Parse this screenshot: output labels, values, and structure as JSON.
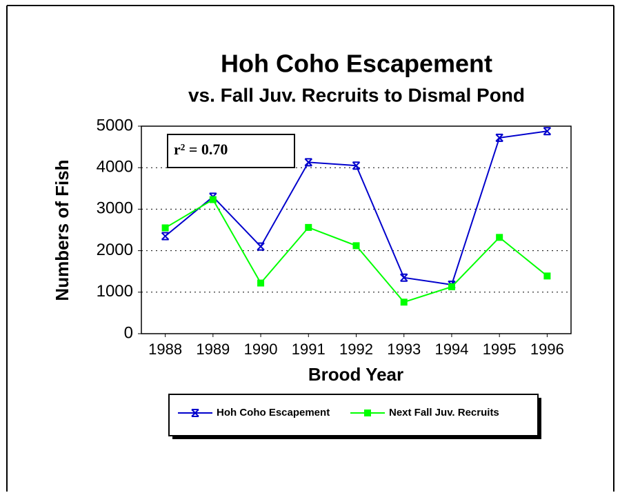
{
  "chart_data": {
    "type": "line",
    "title": "Hoh Coho Escapement",
    "subtitle": "vs. Fall Juv. Recruits to Dismal Pond",
    "x_label": "Brood Year",
    "y_label": "Numbers of Fish",
    "annotation": "r² = 0.70",
    "categories": [
      "1988",
      "1989",
      "1990",
      "1991",
      "1992",
      "1993",
      "1994",
      "1995",
      "1996"
    ],
    "series": [
      {
        "name": "Hoh Coho Escapement",
        "color": "#0000cc",
        "marker": "star",
        "values": [
          2350,
          3300,
          2100,
          4130,
          4050,
          1350,
          1180,
          4720,
          4880
        ]
      },
      {
        "name": "Next Fall Juv. Recruits",
        "color": "#00ff00",
        "marker": "square",
        "values": [
          2550,
          3230,
          1220,
          2560,
          2120,
          760,
          1130,
          2320,
          1390
        ]
      }
    ],
    "ylim": [
      0,
      5000
    ],
    "yticks": [
      0,
      1000,
      2000,
      3000,
      4000,
      5000
    ],
    "grid": true,
    "legend": "bottom"
  }
}
